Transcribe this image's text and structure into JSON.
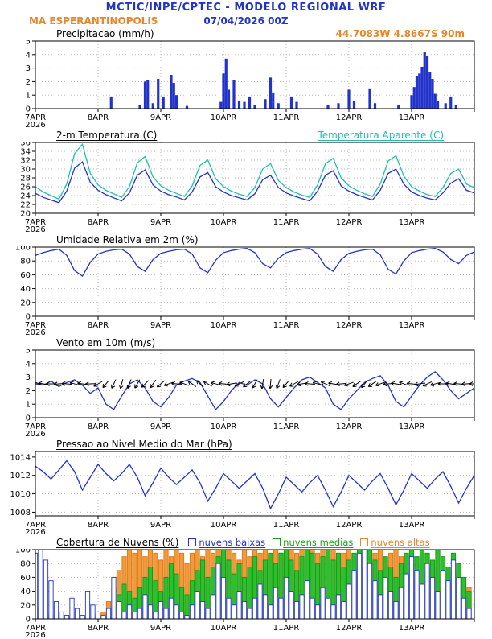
{
  "header": {
    "title": "MCTIC/INPE/CPTEC - MODELO REGIONAL WRF",
    "station": "MA ESPERANTINOPOLIS",
    "run_datetime": "07/04/2026 00Z"
  },
  "colors": {
    "header_blue": "#2233cc",
    "accent_orange": "#e8862a",
    "line_blue": "#2233cc",
    "line_cyan": "#1fbfae",
    "cloud_green": "#2ebf2e",
    "cloud_orange": "#f09a3c"
  },
  "time_axis": {
    "tick_labels": [
      "7APR",
      "8APR",
      "9APR",
      "10APR",
      "11APR",
      "12APR",
      "13APR"
    ],
    "year": "2026",
    "hours_total": 168
  },
  "chart_data": [
    {
      "id": "precipitation",
      "type": "bar",
      "title": "Precipitacao (mm/h)",
      "annotation": "44.7083W 4.8667S 90m",
      "annotation_color": "#e8862a",
      "ylim": [
        0,
        5
      ],
      "yticks": [
        0,
        1,
        2,
        3,
        4,
        5
      ],
      "bar_color": "#2233cc",
      "points": [
        [
          29,
          0.9
        ],
        [
          40,
          0.3
        ],
        [
          42,
          2.0
        ],
        [
          43,
          2.1
        ],
        [
          45,
          0.4
        ],
        [
          47,
          2.2
        ],
        [
          49,
          0.9
        ],
        [
          52,
          2.5
        ],
        [
          53,
          1.9
        ],
        [
          54,
          1.0
        ],
        [
          58,
          0.2
        ],
        [
          71,
          0.5
        ],
        [
          72,
          2.6
        ],
        [
          73,
          3.7
        ],
        [
          74,
          1.4
        ],
        [
          76,
          2.1
        ],
        [
          78,
          0.6
        ],
        [
          80,
          0.5
        ],
        [
          82,
          0.9
        ],
        [
          84,
          0.3
        ],
        [
          88,
          0.7
        ],
        [
          90,
          2.3
        ],
        [
          91,
          1.2
        ],
        [
          93,
          0.4
        ],
        [
          98,
          0.9
        ],
        [
          100,
          0.5
        ],
        [
          112,
          0.3
        ],
        [
          116,
          0.4
        ],
        [
          120,
          1.4
        ],
        [
          122,
          0.6
        ],
        [
          128,
          1.5
        ],
        [
          130,
          0.4
        ],
        [
          139,
          0.3
        ],
        [
          144,
          1.0
        ],
        [
          145,
          1.6
        ],
        [
          146,
          2.4
        ],
        [
          147,
          2.6
        ],
        [
          148,
          3.1
        ],
        [
          149,
          4.2
        ],
        [
          150,
          3.9
        ],
        [
          151,
          2.7
        ],
        [
          152,
          2.2
        ],
        [
          153,
          1.1
        ],
        [
          154,
          0.6
        ],
        [
          157,
          0.4
        ],
        [
          159,
          0.9
        ],
        [
          161,
          0.3
        ]
      ]
    },
    {
      "id": "temperature-2m",
      "type": "line",
      "title": "2-m Temperatura (C)",
      "ylim": [
        20,
        36
      ],
      "yticks": [
        20,
        22,
        24,
        26,
        28,
        30,
        32,
        34,
        36
      ],
      "series": [
        {
          "name": "2-m Temperatura (C)",
          "color": "#2233cc",
          "step_hours": 3,
          "values": [
            24.5,
            23.6,
            23.0,
            22.4,
            25.0,
            30.2,
            31.6,
            27.0,
            25.2,
            24.2,
            23.5,
            22.8,
            24.6,
            28.6,
            29.8,
            26.4,
            25.0,
            24.2,
            23.7,
            23.0,
            24.8,
            28.2,
            29.2,
            26.0,
            24.8,
            24.0,
            23.5,
            23.0,
            24.4,
            27.6,
            28.6,
            25.8,
            24.6,
            23.9,
            23.3,
            22.8,
            25.0,
            28.6,
            29.6,
            26.2,
            25.0,
            24.2,
            23.6,
            23.0,
            25.2,
            29.0,
            30.0,
            26.6,
            24.8,
            24.0,
            23.4,
            23.0,
            24.6,
            26.8,
            27.8,
            25.2,
            24.6
          ]
        },
        {
          "name": "Temperatura Aparente (C)",
          "color": "#1fbfae",
          "step_hours": 3,
          "values": [
            26.0,
            24.8,
            24.0,
            23.2,
            26.6,
            33.5,
            35.6,
            29.0,
            26.4,
            25.2,
            24.4,
            23.6,
            26.0,
            31.4,
            32.8,
            28.2,
            26.2,
            25.2,
            24.5,
            23.8,
            26.2,
            30.8,
            32.0,
            27.8,
            26.0,
            25.0,
            24.3,
            23.8,
            25.8,
            30.0,
            31.2,
            27.4,
            25.8,
            24.8,
            24.1,
            23.6,
            26.4,
            31.2,
            32.4,
            28.0,
            26.2,
            25.2,
            24.4,
            23.8,
            26.6,
            31.8,
            33.0,
            28.4,
            26.0,
            25.0,
            24.2,
            23.8,
            25.8,
            29.0,
            30.0,
            26.6,
            25.8
          ]
        }
      ]
    },
    {
      "id": "relative-humidity-2m",
      "type": "line",
      "title": "Umidade Relativa em 2m (%)",
      "ylim": [
        0,
        100
      ],
      "yticks": [
        0,
        20,
        40,
        60,
        80,
        100
      ],
      "series": [
        {
          "color": "#2233cc",
          "step_hours": 3,
          "values": [
            88,
            92,
            95,
            97,
            88,
            66,
            58,
            78,
            90,
            94,
            96,
            97,
            90,
            72,
            65,
            82,
            91,
            94,
            96,
            97,
            90,
            70,
            63,
            81,
            92,
            95,
            97,
            98,
            92,
            76,
            70,
            84,
            92,
            95,
            97,
            98,
            90,
            72,
            65,
            82,
            91,
            94,
            96,
            97,
            89,
            68,
            61,
            80,
            92,
            95,
            97,
            98,
            93,
            82,
            76,
            88,
            93
          ]
        }
      ]
    },
    {
      "id": "wind-10m",
      "type": "line+arrows",
      "title": "Vento em 10m (m/s)",
      "ylim": [
        0,
        5
      ],
      "yticks": [
        0,
        1,
        2,
        3,
        4,
        5
      ],
      "series": [
        {
          "color": "#2233cc",
          "step_hours": 3,
          "values": [
            2.6,
            2.4,
            2.7,
            2.3,
            2.6,
            2.8,
            2.4,
            1.8,
            2.2,
            1.0,
            0.6,
            1.6,
            2.5,
            2.8,
            2.2,
            1.2,
            0.8,
            1.5,
            2.4,
            2.7,
            2.9,
            2.6,
            1.6,
            0.6,
            1.2,
            2.0,
            2.6,
            2.4,
            2.8,
            2.5,
            1.4,
            0.8,
            1.5,
            2.2,
            2.8,
            3.0,
            2.6,
            2.2,
            1.0,
            0.6,
            1.4,
            2.0,
            2.6,
            2.9,
            3.1,
            2.4,
            1.2,
            0.8,
            1.6,
            2.4,
            3.0,
            3.4,
            2.8,
            2.0,
            1.4,
            1.8,
            2.2
          ]
        }
      ],
      "arrows": {
        "step_hours": 3,
        "y_level": 2.5,
        "dirs_deg": [
          185,
          190,
          180,
          175,
          185,
          195,
          188,
          178,
          150,
          130,
          115,
          105,
          110,
          120,
          135,
          125,
          140,
          160,
          185,
          200,
          215,
          225,
          210,
          195,
          185,
          170,
          155,
          140,
          120,
          100,
          95,
          110,
          130,
          150,
          170,
          185,
          195,
          205,
          190,
          175,
          160,
          145,
          130,
          145,
          160,
          175,
          190,
          200,
          185,
          170,
          155,
          165,
          180,
          190,
          185,
          175,
          180
        ]
      }
    },
    {
      "id": "mean-sea-level-pressure",
      "type": "line",
      "title": "Pressao ao Nivel Medio do Mar (hPa)",
      "ylim": [
        1007.6,
        1014.6
      ],
      "yticks": [
        1008,
        1010,
        1012,
        1014
      ],
      "series": [
        {
          "color": "#2233cc",
          "step_hours": 3,
          "values": [
            1013.0,
            1012.4,
            1011.6,
            1012.6,
            1013.6,
            1012.4,
            1010.4,
            1011.8,
            1013.2,
            1012.2,
            1011.4,
            1012.2,
            1013.2,
            1011.8,
            1009.8,
            1011.2,
            1012.8,
            1011.8,
            1011.0,
            1011.8,
            1012.6,
            1011.2,
            1009.2,
            1010.6,
            1012.2,
            1011.4,
            1010.6,
            1011.4,
            1012.2,
            1010.6,
            1008.4,
            1010.0,
            1011.8,
            1011.0,
            1010.2,
            1011.2,
            1012.0,
            1010.4,
            1008.6,
            1010.2,
            1012.0,
            1011.2,
            1010.4,
            1011.4,
            1012.2,
            1010.6,
            1008.8,
            1010.4,
            1012.2,
            1011.4,
            1010.6,
            1011.6,
            1012.4,
            1010.8,
            1009.0,
            1010.6,
            1012.0
          ]
        }
      ]
    },
    {
      "id": "cloud-cover",
      "type": "grouped-bars",
      "title": "Cobertura de Nuvens (%)",
      "ylim": [
        0,
        100
      ],
      "yticks": [
        0,
        20,
        40,
        60,
        80,
        100
      ],
      "step_hours": 2,
      "legend": [
        {
          "label": "nuvens baixas",
          "color": "#2233cc"
        },
        {
          "label": "nuvens medias",
          "color": "#18a018"
        },
        {
          "label": "nuvens altas",
          "color": "#e8862a"
        }
      ],
      "cloud_series": [
        {
          "name": "nuvens altas",
          "color": "#de7b16",
          "fill": "#f09a3c",
          "values": [
            0,
            0,
            5,
            0,
            0,
            10,
            5,
            0,
            10,
            5,
            0,
            5,
            0,
            10,
            25,
            45,
            70,
            90,
            100,
            95,
            100,
            90,
            100,
            95,
            85,
            100,
            90,
            100,
            95,
            80,
            95,
            100,
            90,
            100,
            95,
            100,
            90,
            100,
            95,
            85,
            100,
            90,
            100,
            95,
            100,
            90,
            100,
            95,
            85,
            100,
            95,
            100,
            90,
            100,
            95,
            100,
            90,
            100,
            85,
            95,
            100,
            90,
            75,
            60,
            80,
            95,
            100,
            85,
            95,
            100,
            90,
            75,
            60,
            80,
            70,
            55,
            75,
            60,
            45,
            65,
            50,
            70,
            55,
            45
          ]
        },
        {
          "name": "nuvens medias",
          "color": "#119911",
          "fill": "#2ebf2e",
          "values": [
            10,
            15,
            10,
            5,
            0,
            0,
            5,
            0,
            0,
            5,
            0,
            0,
            5,
            0,
            10,
            20,
            35,
            50,
            40,
            30,
            45,
            60,
            75,
            55,
            40,
            60,
            80,
            65,
            45,
            35,
            55,
            70,
            85,
            60,
            75,
            90,
            100,
            85,
            65,
            80,
            60,
            75,
            90,
            70,
            85,
            95,
            80,
            95,
            100,
            85,
            70,
            90,
            100,
            95,
            80,
            90,
            100,
            85,
            95,
            75,
            85,
            95,
            100,
            90,
            100,
            85,
            70,
            90,
            75,
            60,
            80,
            95,
            100,
            90,
            100,
            95,
            85,
            100,
            90,
            75,
            95,
            80,
            60,
            40
          ]
        },
        {
          "name": "nuvens baixas",
          "color": "#2233cc",
          "fill": "#ffffff",
          "values": [
            95,
            100,
            85,
            55,
            25,
            10,
            5,
            30,
            15,
            5,
            40,
            20,
            10,
            5,
            15,
            60,
            25,
            10,
            20,
            10,
            15,
            35,
            20,
            10,
            25,
            15,
            30,
            20,
            10,
            5,
            20,
            40,
            25,
            15,
            35,
            80,
            60,
            30,
            20,
            40,
            25,
            15,
            30,
            50,
            35,
            20,
            45,
            30,
            60,
            40,
            25,
            35,
            55,
            30,
            20,
            45,
            30,
            20,
            35,
            25,
            50,
            70,
            95,
            100,
            80,
            55,
            35,
            60,
            40,
            25,
            45,
            65,
            90,
            70,
            50,
            80,
            60,
            40,
            70,
            55,
            85,
            60,
            30,
            15
          ]
        }
      ]
    }
  ]
}
